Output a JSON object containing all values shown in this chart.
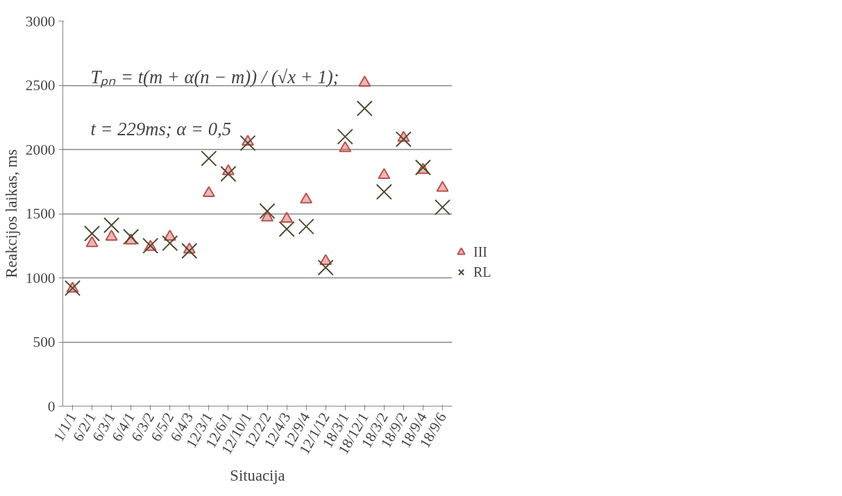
{
  "chart_data": {
    "type": "scatter",
    "xlabel": "Situacija",
    "ylabel": "Reakcijos laikas, ms",
    "categories": [
      "1/1/1",
      "6/2/1",
      "6/3/1",
      "6/4/1",
      "6/3/2",
      "6/5/2",
      "6/4/3",
      "12/3/1",
      "12/6/1",
      "12/10/1",
      "12/2/2",
      "12/4/3",
      "12/9/4",
      "12/1/12",
      "18/3/1",
      "18/12/1",
      "18/3/2",
      "18/9/2",
      "18/9/4",
      "18/9/6"
    ],
    "series": [
      {
        "name": "III",
        "color": "#c0504d",
        "marker": "triangle",
        "values": [
          915,
          1270,
          1320,
          1290,
          1240,
          1320,
          1220,
          1660,
          1830,
          2060,
          1470,
          1460,
          1610,
          1130,
          2010,
          2520,
          1800,
          2090,
          1840,
          1700
        ]
      },
      {
        "name": "RL",
        "color": "#4f4a2f",
        "marker": "cross",
        "values": [
          920,
          1345,
          1410,
          1320,
          1250,
          1270,
          1210,
          1930,
          1810,
          2050,
          1520,
          1380,
          1400,
          1080,
          2100,
          2320,
          1670,
          2080,
          1860,
          1550
        ]
      }
    ],
    "ylim": [
      0,
      3000
    ],
    "yticks": [
      0,
      500,
      1000,
      1500,
      2000,
      2500,
      3000
    ],
    "grid": "y",
    "legend": "right",
    "annotations": [
      "Tₚₙ = t(m + α(n − m)) / (√x + 1);",
      "t = 229ms; α = 0,5"
    ]
  }
}
